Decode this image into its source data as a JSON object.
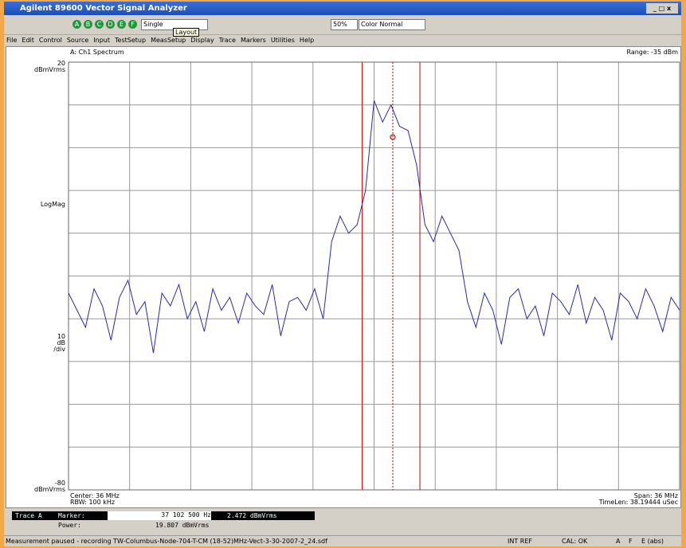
{
  "window": {
    "title": "Agilent 89600 Vector Signal Analyzer"
  },
  "toolbar": {
    "channels": [
      "A",
      "B",
      "C",
      "D",
      "E",
      "F"
    ],
    "mode": "Single",
    "tooltip": "Layout",
    "zoom": "50%",
    "color": "Color Normal"
  },
  "menu": [
    "File",
    "Edit",
    "Control",
    "Source",
    "Input",
    "TestSetup",
    "MeasSetup",
    "Display",
    "Trace",
    "Markers",
    "Utilities",
    "Help"
  ],
  "chart_data": {
    "type": "line",
    "title": "A: Ch1 Spectrum",
    "range": "Range: -35 dBm",
    "y_unit": "dBmVrms",
    "y_format": "LogMag",
    "scale": [
      "10",
      "dB",
      "/div"
    ],
    "footer_left": [
      "Center: 36 MHz",
      "RBW: 100 kHz"
    ],
    "footer_right": [
      "Span: 36 MHz",
      "TimeLen: 38.19444 uSec"
    ],
    "x": [
      18,
      18.5,
      19,
      19.5,
      20,
      20.5,
      21,
      21.5,
      22,
      22.5,
      23,
      23.5,
      24,
      24.5,
      25,
      25.5,
      26,
      26.5,
      27,
      27.5,
      28,
      28.5,
      29,
      29.5,
      30,
      30.5,
      31,
      31.5,
      32,
      32.5,
      33,
      33.5,
      34,
      34.5,
      35,
      35.5,
      36,
      36.5,
      37,
      37.5,
      38,
      38.5,
      39,
      39.5,
      40,
      40.5,
      41,
      41.5,
      42,
      42.5,
      43,
      43.5,
      44,
      44.5,
      45,
      45.5,
      46,
      46.5,
      47,
      47.5,
      48,
      48.5,
      49,
      49.5,
      50,
      50.5,
      51,
      51.5,
      52,
      52.5,
      53,
      53.5,
      54
    ],
    "values": [
      -34,
      -38,
      -42,
      -33,
      -37,
      -45,
      -35,
      -31,
      -39,
      -36,
      -48,
      -34,
      -37,
      -32,
      -40,
      -36,
      -43,
      -33,
      -38,
      -35,
      -41,
      -34,
      -37,
      -39,
      -32,
      -44,
      -36,
      -35,
      -38,
      -33,
      -40,
      -22,
      -16,
      -20,
      -18,
      -10,
      11,
      6,
      10,
      5,
      4,
      -4,
      -18,
      -22,
      -16,
      -20,
      -24,
      -36,
      -42,
      -34,
      -38,
      -46,
      -35,
      -33,
      -40,
      -37,
      -44,
      -34,
      -36,
      -39,
      -32,
      -41,
      -35,
      -38,
      -45,
      -34,
      -36,
      -40,
      -33,
      -37,
      -43,
      -35,
      -38
    ],
    "color": "#2a2aa8",
    "xlim": [
      18,
      54
    ],
    "xticks": [
      18,
      21.6,
      25.2,
      28.8,
      32.4,
      36,
      39.6,
      43.2,
      46.8,
      50.4,
      54
    ],
    "ylim": [
      -80,
      20
    ],
    "yticks": [
      20,
      10,
      0,
      -10,
      -20,
      -30,
      -40,
      -50,
      -60,
      -70,
      -80
    ],
    "grid": true,
    "band_edges": [
      35.3,
      38.7
    ],
    "marker": {
      "x": 37.1025,
      "y": 2.472,
      "frequency_label": "37 102 500 Hz",
      "value_label": "2.472 dBmVrms"
    }
  },
  "marker_panel": {
    "trace": "Trace A",
    "marker_label": "Marker:",
    "power_label": "Power:",
    "power": "19.807 dBmVrms"
  },
  "status": {
    "message": "Measurement paused - recording TW-Columbus-Node-704-T-CM (18-52)MHz-Vect-3-30-2007-2_24.sdf",
    "ref": "INT REF",
    "cal": "CAL: OK",
    "flags": [
      "A",
      "F",
      "E (abs)"
    ]
  }
}
